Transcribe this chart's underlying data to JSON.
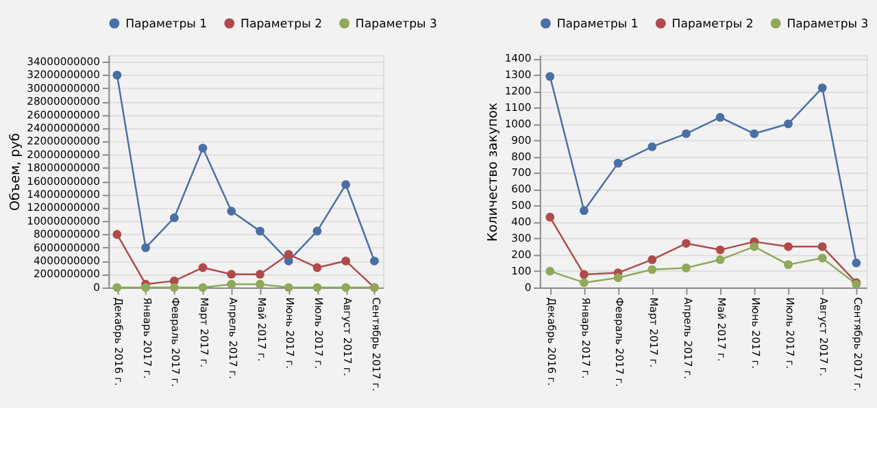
{
  "chart_data": [
    {
      "type": "line",
      "ylabel": "Объем, руб",
      "categories": [
        "Декабрь 2016 г.",
        "Январь 2017 г.",
        "Февраль 2017 г.",
        "Март 2017 г.",
        "Апрель 2017 г.",
        "Май 2017 г.",
        "Июнь 2017 г.",
        "Июль 2017 г.",
        "Август 2017 г.",
        "Сентябрь 2017 г."
      ],
      "series": [
        {
          "name": "Параметры 1",
          "color": "#4a6fa5",
          "values": [
            32000000000,
            6000000000,
            10500000000,
            21000000000,
            11500000000,
            8500000000,
            4000000000,
            8500000000,
            15500000000,
            4000000000
          ]
        },
        {
          "name": "Параметры 2",
          "color": "#b04a4a",
          "values": [
            8000000000,
            500000000,
            1000000000,
            3000000000,
            2000000000,
            2000000000,
            5000000000,
            3000000000,
            4000000000,
            0
          ]
        },
        {
          "name": "Параметры 3",
          "color": "#8fa85a",
          "values": [
            0,
            0,
            0,
            0,
            500000000,
            500000000,
            0,
            0,
            0,
            0
          ]
        }
      ],
      "ylim": [
        0,
        35000000000
      ],
      "yticks": [
        0,
        2000000000,
        4000000000,
        6000000000,
        8000000000,
        10000000000,
        12000000000,
        14000000000,
        16000000000,
        18000000000,
        20000000000,
        22000000000,
        24000000000,
        26000000000,
        28000000000,
        30000000000,
        32000000000,
        34000000000
      ],
      "grid": "y",
      "legend": "top",
      "marker": "circle",
      "line_style": "solid"
    },
    {
      "type": "line",
      "ylabel": "Количество закупок",
      "categories": [
        "Декабрь 2016 г.",
        "Январь 2017 г.",
        "Февраль 2017 г.",
        "Март 2017 г.",
        "Апрель 2017 г.",
        "Май 2017 г.",
        "Июнь 2017 г.",
        "Июль 2017 г.",
        "Август 2017 г.",
        "Сентябрь 2017 г."
      ],
      "series": [
        {
          "name": "Параметры 1",
          "color": "#4a6fa5",
          "values": [
            1290,
            470,
            760,
            860,
            940,
            1040,
            940,
            1000,
            1220,
            150
          ]
        },
        {
          "name": "Параметры 2",
          "color": "#b04a4a",
          "values": [
            430,
            80,
            90,
            170,
            270,
            230,
            280,
            250,
            250,
            30
          ]
        },
        {
          "name": "Параметры 3",
          "color": "#8fa85a",
          "values": [
            100,
            30,
            60,
            110,
            120,
            170,
            250,
            140,
            180,
            20
          ]
        }
      ],
      "ylim": [
        0,
        1420
      ],
      "yticks": [
        0,
        100,
        200,
        300,
        400,
        500,
        600,
        700,
        800,
        900,
        1000,
        1100,
        1200,
        1300,
        1400
      ],
      "grid": "y",
      "legend": "top",
      "marker": "circle",
      "line_style": "solid"
    }
  ]
}
